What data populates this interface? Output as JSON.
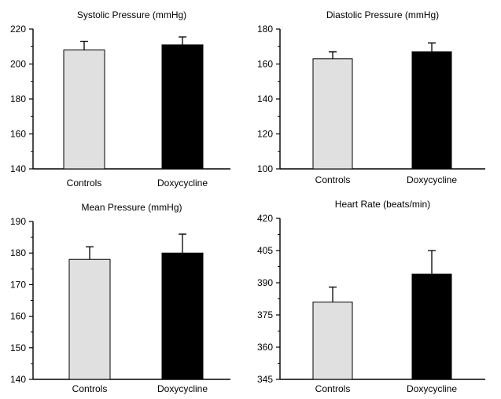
{
  "chart_data": [
    {
      "type": "bar",
      "title": "Systolic Pressure (mmHg)",
      "categories": [
        "Controls",
        "Doxycycline"
      ],
      "values": [
        208,
        211
      ],
      "error": [
        5,
        4.5
      ],
      "colors": [
        "#e0e0e0",
        "#000000"
      ],
      "ylim": [
        140,
        220
      ],
      "yticks": [
        140,
        160,
        180,
        200,
        220
      ],
      "xlabel": "",
      "ylabel": "",
      "grid": false
    },
    {
      "type": "bar",
      "title": "Diastolic Pressure (mmHg)",
      "categories": [
        "Controls",
        "Doxycycline"
      ],
      "values": [
        163,
        167
      ],
      "error": [
        4,
        5
      ],
      "colors": [
        "#e0e0e0",
        "#000000"
      ],
      "ylim": [
        100,
        180
      ],
      "yticks": [
        100,
        120,
        140,
        160,
        180
      ],
      "xlabel": "",
      "ylabel": "",
      "grid": false
    },
    {
      "type": "bar",
      "title": "Mean Pressure (mmHg)",
      "categories": [
        "Controls",
        "Doxycycline"
      ],
      "values": [
        178,
        180
      ],
      "error": [
        4,
        6
      ],
      "colors": [
        "#e0e0e0",
        "#000000"
      ],
      "ylim": [
        140,
        190
      ],
      "yticks": [
        140,
        150,
        160,
        170,
        180,
        190
      ],
      "xlabel": "",
      "ylabel": "",
      "grid": false
    },
    {
      "type": "bar",
      "title": "Heart Rate (beats/min)",
      "categories": [
        "Controls",
        "Doxycycline"
      ],
      "values": [
        381,
        394
      ],
      "error": [
        7,
        11
      ],
      "colors": [
        "#e0e0e0",
        "#000000"
      ],
      "ylim": [
        345,
        420
      ],
      "yticks": [
        345,
        360,
        375,
        390,
        405,
        420
      ],
      "xlabel": "",
      "ylabel": "",
      "grid": false
    }
  ]
}
